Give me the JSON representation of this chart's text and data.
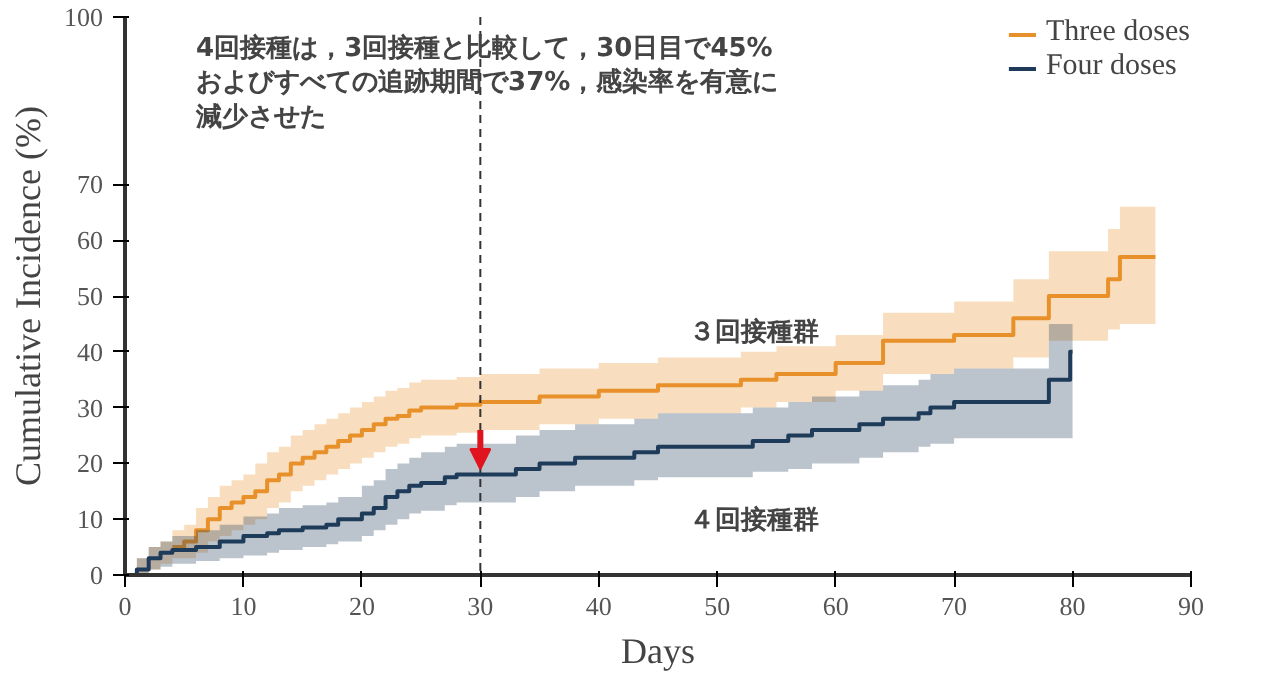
{
  "chart_data": {
    "type": "step",
    "title": "4回接種は，3回接種と比較して，30日目で45%およびすべての追跡期間で37%，感染率を有意に減少させた",
    "xlabel": "Days",
    "ylabel": "Cumulative Incidence (%)",
    "xlim": [
      0,
      90
    ],
    "xticks": [
      0,
      10,
      20,
      30,
      40,
      50,
      60,
      70,
      80,
      90
    ],
    "ylim": [
      0,
      100
    ],
    "yticks": [
      0,
      10,
      20,
      30,
      40,
      50,
      60,
      70,
      100
    ],
    "grid": false,
    "legend": "top right",
    "series": [
      {
        "name": "Three doses",
        "color": "#e8912a",
        "x": [
          0,
          1,
          2,
          3,
          4,
          5,
          6,
          7,
          8,
          9,
          10,
          11,
          12,
          13,
          14,
          15,
          16,
          17,
          18,
          19,
          20,
          21,
          22,
          23,
          24,
          25,
          28,
          30,
          35,
          40,
          45,
          50,
          52,
          55,
          60,
          64,
          70,
          75,
          78,
          83,
          84,
          87
        ],
        "values": [
          null,
          null,
          null,
          null,
          5,
          6,
          8,
          10,
          12,
          13,
          14,
          15,
          17,
          18,
          20,
          21,
          22,
          23,
          24,
          25,
          26,
          27,
          28,
          28.5,
          29.5,
          30,
          30.5,
          31,
          32,
          33,
          34,
          34,
          35,
          36,
          38,
          42,
          43,
          46,
          50,
          53,
          57,
          57
        ],
        "lower": [
          0,
          0,
          1,
          2,
          3,
          3,
          4,
          6,
          7,
          8,
          9,
          10,
          12,
          13,
          15,
          16,
          17,
          18,
          19,
          20,
          21,
          22,
          23,
          23.5,
          24.5,
          25,
          25.5,
          26,
          27,
          28,
          29,
          29,
          30,
          31,
          33,
          36,
          37,
          39,
          42,
          44,
          45,
          45
        ],
        "upper": [
          0,
          3,
          5,
          6,
          8,
          9,
          12,
          14,
          16,
          17,
          18,
          20,
          22,
          23,
          25,
          26,
          27,
          28,
          29,
          30,
          31,
          32,
          33,
          33.5,
          34.5,
          35,
          35.5,
          36,
          37,
          38,
          39,
          39,
          40,
          41,
          43,
          47,
          49,
          53,
          58,
          62,
          66,
          66
        ]
      },
      {
        "name": "Four doses",
        "color": "#1f3b5a",
        "x": [
          0,
          1,
          2,
          3,
          4,
          6,
          8,
          10,
          12,
          13,
          15,
          17,
          18,
          20,
          21,
          22,
          23,
          24,
          25,
          27,
          28,
          32,
          33,
          35,
          38,
          43,
          45,
          50,
          53,
          56,
          58,
          62,
          64,
          67,
          68,
          70,
          78,
          79.8,
          80
        ],
        "values": [
          0,
          1,
          3,
          4,
          4.5,
          5,
          6,
          7,
          7.5,
          8,
          8.5,
          9,
          10,
          11,
          12,
          14,
          15,
          16,
          16.5,
          17.5,
          18,
          18,
          19,
          20,
          21,
          22,
          23,
          23,
          24,
          25,
          26,
          27,
          28,
          29,
          30,
          31,
          35,
          40,
          40
        ],
        "lower": [
          0,
          0,
          1,
          1.5,
          2,
          2.5,
          3,
          3.5,
          4,
          4.5,
          5,
          5.5,
          6,
          7,
          8,
          9,
          10,
          11,
          11.5,
          12.5,
          13,
          13,
          14,
          15,
          16,
          17,
          17.5,
          17.5,
          18.5,
          19,
          20,
          21,
          22,
          23,
          23.5,
          24.5,
          24.5,
          24.5,
          24.5
        ],
        "upper": [
          0,
          3,
          5,
          6,
          7,
          8,
          9,
          10.5,
          11,
          12,
          12.5,
          13,
          14,
          16,
          17,
          19,
          20,
          21,
          22,
          23,
          23.5,
          23.5,
          25,
          26,
          27,
          28,
          29,
          29,
          30,
          31,
          32,
          33,
          34,
          35,
          36,
          37,
          45,
          45,
          45
        ]
      }
    ],
    "ref_lines": [
      {
        "axis": "x",
        "value": 30,
        "color": "#333333",
        "line_style": "dashed"
      }
    ],
    "annotations": [
      "３回接種群",
      "４回接種群"
    ]
  }
}
